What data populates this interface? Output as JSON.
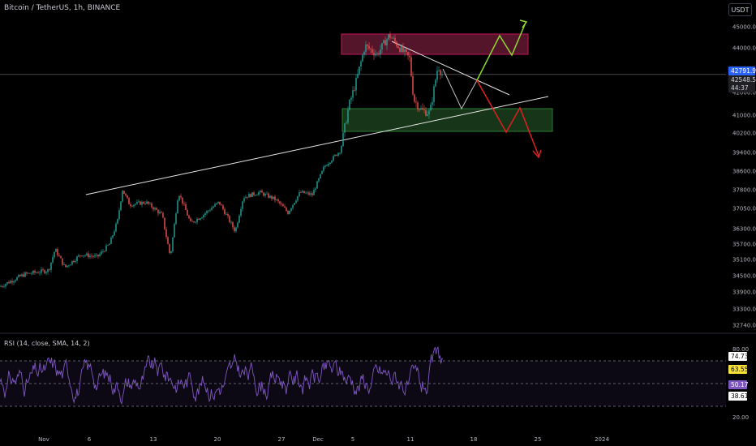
{
  "header": {
    "ticker": "Bitcoin / TetherUS, 1h, BINANCE",
    "currency_button": "USDT"
  },
  "price_tags": {
    "last_price": "42791.90",
    "second_price": "42548.54",
    "countdown": "44:37"
  },
  "rsi": {
    "label": "RSI (14, close, SMA, 14, 2)",
    "tags": [
      "74.73",
      "63.55",
      "50.17",
      "38.61"
    ]
  },
  "colors": {
    "background": "#000000",
    "up_candle": "#26a69a",
    "down_candle": "#ef5350",
    "rsi_line": "#7e57c2",
    "rsi_band": "#7e57c2",
    "supply_zone": "#ff4081",
    "demand_zone": "#4caf50",
    "bull_projection": "#8bdb2b",
    "bear_projection": "#e02020",
    "trendline": "#e6e6e6",
    "price_line_tag": "#2962ff"
  },
  "chart_data": {
    "type": "candlestick",
    "symbol": "Bitcoin / TetherUS",
    "interval": "1h",
    "exchange": "BINANCE",
    "y_ticks": [
      45000,
      44000,
      43000,
      42000,
      41000,
      40200,
      39400,
      38600,
      37800,
      37050,
      36300,
      35700,
      35100,
      34500,
      33900,
      33300,
      32740
    ],
    "y_tick_labels": [
      "45000.00",
      "44000.00",
      "43000.00",
      "42000.00",
      "41000.00",
      "40200.00",
      "39400.00",
      "38600.00",
      "37800.00",
      "37050.00",
      "36300.00",
      "35700.00",
      "35100.00",
      "34500.00",
      "33900.00",
      "33300.00",
      "32740.00"
    ],
    "x_tick_labels": [
      "Nov",
      "6",
      "13",
      "20",
      "27",
      "Dec",
      "5",
      "11",
      "18",
      "25",
      "2024"
    ],
    "last_price": 42791.9,
    "price_path": [
      {
        "x": 0,
        "p": 34100
      },
      {
        "x": 30,
        "p": 34550
      },
      {
        "x": 60,
        "p": 34700
      },
      {
        "x": 68,
        "p": 35500
      },
      {
        "x": 80,
        "p": 34800
      },
      {
        "x": 100,
        "p": 35300
      },
      {
        "x": 120,
        "p": 35200
      },
      {
        "x": 135,
        "p": 35700
      },
      {
        "x": 145,
        "p": 36600
      },
      {
        "x": 151,
        "p": 37800
      },
      {
        "x": 160,
        "p": 37200
      },
      {
        "x": 180,
        "p": 37300
      },
      {
        "x": 200,
        "p": 36800
      },
      {
        "x": 210,
        "p": 35200
      },
      {
        "x": 220,
        "p": 37700
      },
      {
        "x": 235,
        "p": 36500
      },
      {
        "x": 250,
        "p": 36800
      },
      {
        "x": 270,
        "p": 37300
      },
      {
        "x": 290,
        "p": 36200
      },
      {
        "x": 300,
        "p": 37500
      },
      {
        "x": 320,
        "p": 37700
      },
      {
        "x": 340,
        "p": 37400
      },
      {
        "x": 355,
        "p": 36900
      },
      {
        "x": 370,
        "p": 37700
      },
      {
        "x": 385,
        "p": 37600
      },
      {
        "x": 400,
        "p": 38800
      },
      {
        "x": 420,
        "p": 39500
      },
      {
        "x": 430,
        "p": 41400
      },
      {
        "x": 440,
        "p": 42600
      },
      {
        "x": 450,
        "p": 44100
      },
      {
        "x": 465,
        "p": 43700
      },
      {
        "x": 480,
        "p": 44600
      },
      {
        "x": 495,
        "p": 43900
      },
      {
        "x": 505,
        "p": 43500
      },
      {
        "x": 510,
        "p": 41700
      },
      {
        "x": 520,
        "p": 41200
      },
      {
        "x": 530,
        "p": 41100
      },
      {
        "x": 540,
        "p": 43200
      },
      {
        "x": 546,
        "p": 42700
      }
    ],
    "rsi_series": {
      "name": "RSI (14, close, SMA, 14, 2)",
      "levels": [
        80,
        70,
        50,
        30,
        20
      ],
      "last_values": [
        74.73,
        63.55,
        50.17,
        38.61
      ]
    }
  }
}
